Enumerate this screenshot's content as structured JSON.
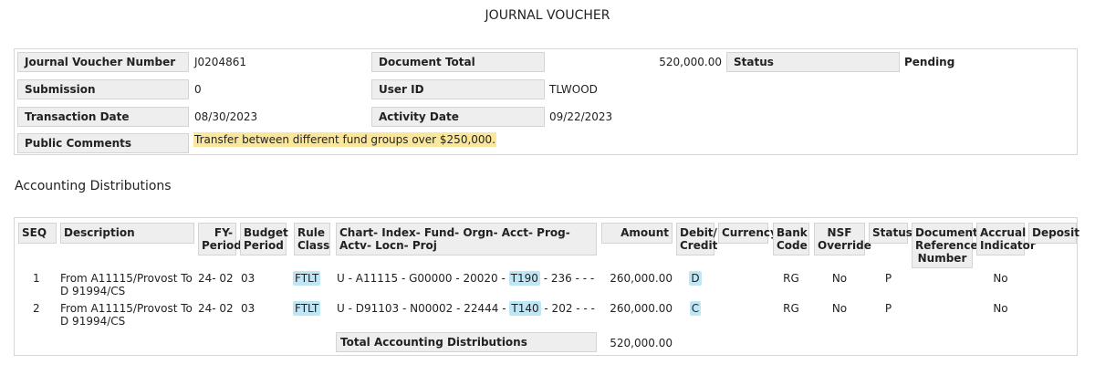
{
  "page": {
    "title": "JOURNAL VOUCHER"
  },
  "header": {
    "jv_number_label": "Journal Voucher Number",
    "jv_number": "J0204861",
    "doc_total_label": "Document Total",
    "doc_total": "520,000.00",
    "status_label": "Status",
    "status": "Pending",
    "submission_label": "Submission",
    "submission": "0",
    "user_id_label": "User ID",
    "user_id": "TLWOOD",
    "transaction_date_label": "Transaction Date",
    "transaction_date": "08/30/2023",
    "activity_date_label": "Activity Date",
    "activity_date": "09/22/2023",
    "public_comments_label": "Public Comments",
    "public_comments": "Transfer between different fund groups over $250,000."
  },
  "distributions": {
    "section_title": "Accounting Distributions",
    "columns": {
      "seq": "SEQ",
      "description": "Description",
      "fy_period": "FY- Period",
      "budget_period": "Budget Period",
      "rule_class": "Rule Class",
      "coa": "Chart- Index- Fund- Orgn- Acct- Prog- Actv- Locn- Proj",
      "amount": "Amount",
      "debit_credit": "Debit/ Credit",
      "currency": "Currency",
      "bank_code": "Bank Code",
      "nsf_override": "NSF Override",
      "status": "Status",
      "doc_ref": "Document Reference Number",
      "accrual": "Accrual Indicator",
      "deposit": "Deposit"
    },
    "rows": [
      {
        "seq": "1",
        "description": "From A11115/Provost To D 91994/CS",
        "fy_period": "24- 02",
        "budget_period": "03",
        "rule_class": "FTLT",
        "coa_pre": "U - A11115 - G00000 - 20020 - ",
        "acct": "T190",
        "coa_post": " - 236 - - -",
        "amount": "260,000.00",
        "debit_credit": "D",
        "currency": "",
        "bank_code": "RG",
        "nsf_override": "No",
        "status": "P",
        "doc_ref": "",
        "accrual": "No",
        "deposit": ""
      },
      {
        "seq": "2",
        "description": "From A11115/Provost To D 91994/CS",
        "fy_period": "24- 02",
        "budget_period": "03",
        "rule_class": "FTLT",
        "coa_pre": "U - D91103 - N00002 - 22444 - ",
        "acct": "T140",
        "coa_post": " - 202 - - -",
        "amount": "260,000.00",
        "debit_credit": "C",
        "currency": "",
        "bank_code": "RG",
        "nsf_override": "No",
        "status": "P",
        "doc_ref": "",
        "accrual": "No",
        "deposit": ""
      }
    ],
    "total_label": "Total Accounting Distributions",
    "total_amount": "520,000.00"
  },
  "colors": {
    "label_bg": "#eeeeee",
    "comment_highlight": "#fbe79b",
    "tag_highlight": "#bfe6f5"
  }
}
